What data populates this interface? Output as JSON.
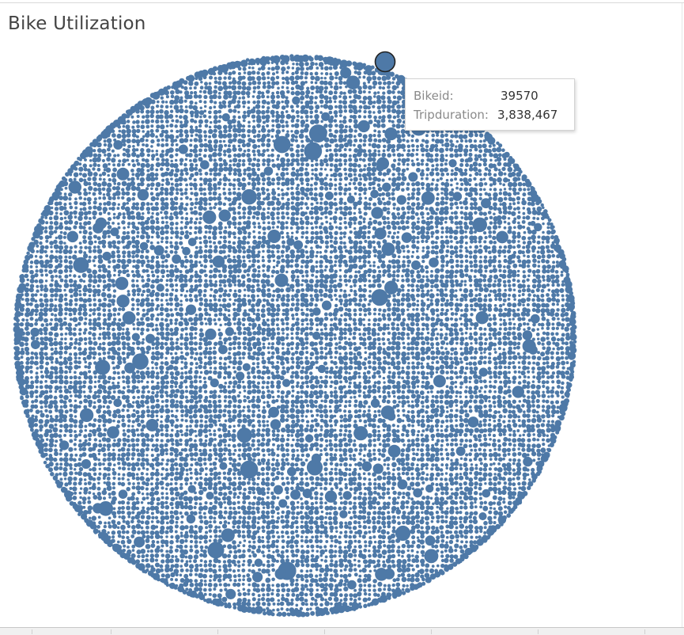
{
  "title": "Bike Utilization",
  "chart_data": {
    "type": "packed-bubble",
    "title": "Bike Utilization",
    "size_measure": "Tripduration",
    "label_dimension": "Bikeid",
    "color": "#4e79a7",
    "highlight_stroke": "#222222",
    "highlighted_point": {
      "Bikeid": "39570",
      "Tripduration": "3,838,467"
    },
    "legend": "none",
    "grid": false
  },
  "tooltip": {
    "bikeid_label": "Bikeid:",
    "bikeid_value": "39570",
    "tripduration_label": "Tripduration:",
    "tripduration_value": "3,838,467"
  }
}
